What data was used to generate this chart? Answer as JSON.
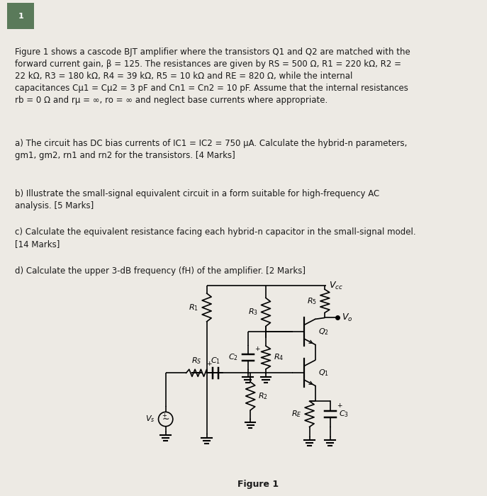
{
  "background_color": "#edeae4",
  "text_color": "#1a1a1a",
  "title_box_color": "#5a7a5a",
  "title_text": "1",
  "body_text_lines": [
    "Figure 1 shows a cascode BJT amplifier where the transistors Q1 and Q2 are matched with the",
    "forward current gain, β = 125. The resistances are given by RS = 500 Ω, R1 = 220 kΩ, R2 =",
    "22 kΩ, R3 = 180 kΩ, R4 = 39 kΩ, R5 = 10 kΩ and RE = 820 Ω, while the internal",
    "capacitances Cμ1 = Cμ2 = 3 pF and Cn1 = Cn2 = 10 pF. Assume that the internal resistances",
    "rb = 0 Ω and rμ = ∞, ro = ∞ and neglect base currents where appropriate."
  ],
  "qa_text": "a) The circuit has DC bias currents of IC1 = IC2 = 750 μA. Calculate the hybrid-n parameters,\ngm1, gm2, rn1 and rn2 for the transistors. [4 Marks]",
  "qb_text": "b) Illustrate the small-signal equivalent circuit in a form suitable for high-frequency AC\nanalysis. [5 Marks]",
  "qc_text": "c) Calculate the equivalent resistance facing each hybrid-n capacitor in the small-signal model.\n[14 Marks]",
  "qd_text": "d) Calculate the upper 3-dB frequency (fH) of the amplifier. [2 Marks]",
  "figure_label": "Figure 1",
  "line_color": "#000000",
  "font_size_body": 8.5,
  "font_size_labels": 8.0
}
